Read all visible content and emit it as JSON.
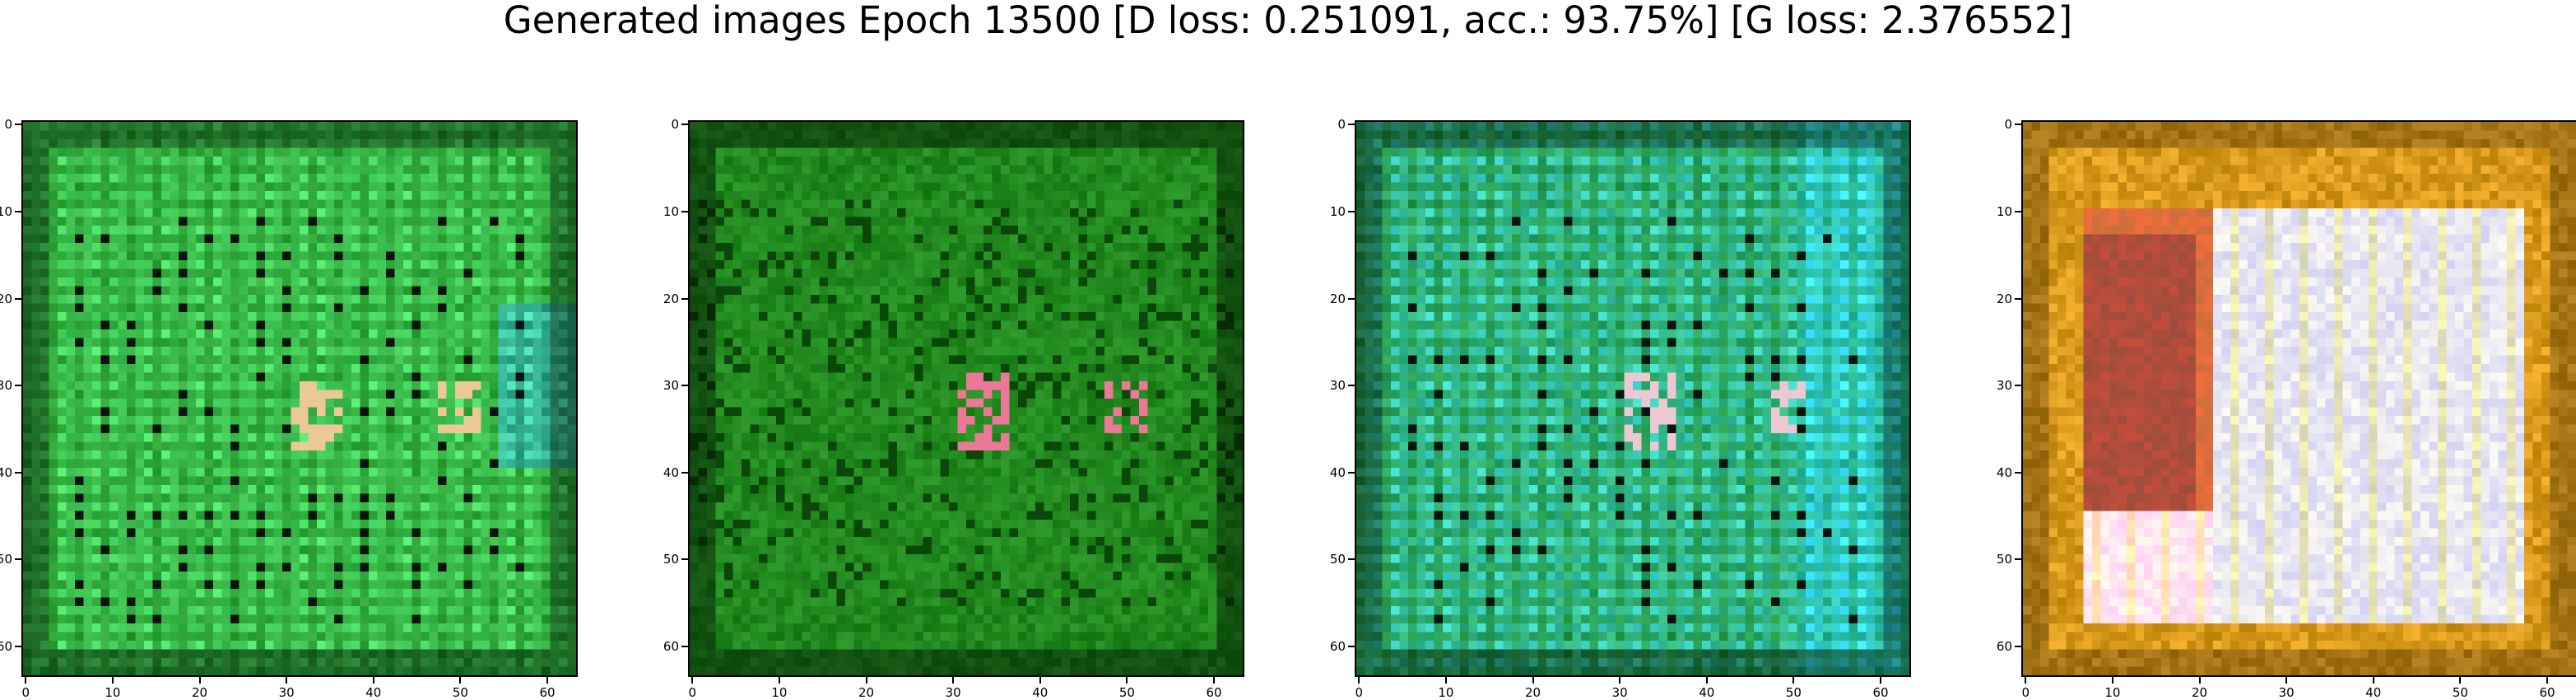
{
  "figure": {
    "title": "Generated images Epoch 13500 [D loss: 0.251091, acc.: 93.75%] [G loss: 2.376552]"
  },
  "axes": {
    "xticks": [
      "0",
      "10",
      "20",
      "30",
      "40",
      "50",
      "60"
    ],
    "yticks": [
      "0",
      "10",
      "20",
      "30",
      "40",
      "50",
      "60"
    ],
    "tick_values": [
      0,
      10,
      20,
      30,
      40,
      50,
      60
    ],
    "range": [
      -0.5,
      63.5
    ]
  },
  "panels": [
    {
      "name": "generated-image-1",
      "palette": "green",
      "base": "#1f8a22",
      "accent": "#4fe06a"
    },
    {
      "name": "generated-image-2",
      "palette": "dark-green",
      "base": "#1c7a18",
      "accent": "#2fb030"
    },
    {
      "name": "generated-image-3",
      "palette": "green-cyan",
      "base": "#1e8a26",
      "accent": "#3fd6c8"
    },
    {
      "name": "generated-image-4",
      "palette": "orange-white",
      "base": "#d99a1c",
      "accent": "#e8e6f2"
    }
  ]
}
